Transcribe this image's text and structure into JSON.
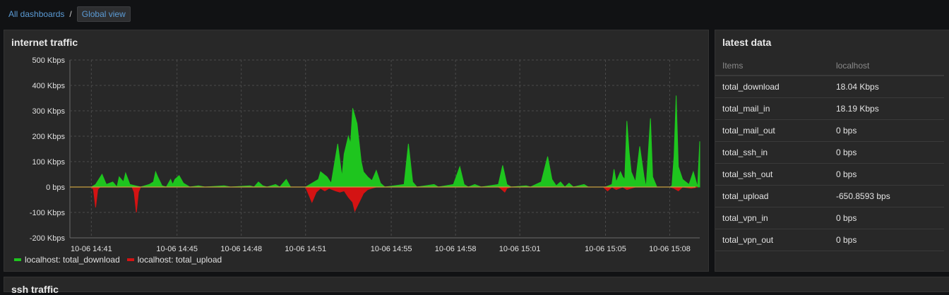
{
  "breadcrumb": {
    "all_dashboards": "All dashboards",
    "separator": "/",
    "current": "Global view"
  },
  "traffic_panel": {
    "title": "internet traffic"
  },
  "latest_panel": {
    "title": "latest data",
    "columns": [
      "Items",
      "localhost"
    ],
    "rows": [
      {
        "item": "total_download",
        "value": "18.04 Kbps"
      },
      {
        "item": "total_mail_in",
        "value": "18.19 Kbps"
      },
      {
        "item": "total_mail_out",
        "value": "0 bps"
      },
      {
        "item": "total_ssh_in",
        "value": "0 bps"
      },
      {
        "item": "total_ssh_out",
        "value": "0 bps"
      },
      {
        "item": "total_upload",
        "value": "-650.8593 bps"
      },
      {
        "item": "total_vpn_in",
        "value": "0 bps"
      },
      {
        "item": "total_vpn_out",
        "value": "0 bps"
      }
    ]
  },
  "ssh_panel": {
    "title": "ssh traffic"
  },
  "colors": {
    "download": "#1ec51e",
    "upload": "#d41313",
    "zero_line": "#c8a040"
  },
  "chart_data": {
    "type": "area",
    "title": "internet traffic",
    "y_unit": "Kbps",
    "ylim": [
      -200,
      500
    ],
    "y_ticks": [
      500,
      400,
      300,
      200,
      100,
      0,
      -100,
      -200
    ],
    "y_tick_labels": [
      "500 Kbps",
      "400 Kbps",
      "300 Kbps",
      "200 Kbps",
      "100 Kbps",
      "0 bps",
      "-100 Kbps",
      "-200 Kbps"
    ],
    "x_unit": "minutes since 14:40 (2023-10-06)",
    "xlim": [
      0,
      29.4
    ],
    "x_ticks": [
      1,
      5,
      8,
      11,
      15,
      18,
      21,
      25,
      28
    ],
    "x_tick_labels": [
      "10-06 14:41",
      "10-06 14:45",
      "10-06 14:48",
      "10-06 14:51",
      "10-06 14:55",
      "10-06 14:58",
      "10-06 15:01",
      "10-06 15:05",
      "10-06 15:08"
    ],
    "grid": true,
    "legend_position": "bottom-left",
    "series": [
      {
        "name": "localhost: total_download",
        "color": "#1ec51e",
        "points": [
          [
            1.0,
            0
          ],
          [
            1.2,
            10
          ],
          [
            1.5,
            50
          ],
          [
            1.7,
            10
          ],
          [
            2.0,
            20
          ],
          [
            2.2,
            0
          ],
          [
            2.3,
            40
          ],
          [
            2.5,
            20
          ],
          [
            2.6,
            55
          ],
          [
            2.8,
            10
          ],
          [
            3.3,
            0
          ],
          [
            3.7,
            10
          ],
          [
            3.9,
            20
          ],
          [
            4.0,
            60
          ],
          [
            4.1,
            40
          ],
          [
            4.3,
            5
          ],
          [
            4.5,
            0
          ],
          [
            4.7,
            30
          ],
          [
            4.8,
            10
          ],
          [
            4.9,
            30
          ],
          [
            5.1,
            45
          ],
          [
            5.3,
            15
          ],
          [
            5.6,
            0
          ],
          [
            6.0,
            5
          ],
          [
            6.3,
            0
          ],
          [
            7.2,
            5
          ],
          [
            7.5,
            0
          ],
          [
            8.4,
            5
          ],
          [
            8.6,
            0
          ],
          [
            8.8,
            20
          ],
          [
            9.0,
            5
          ],
          [
            9.2,
            0
          ],
          [
            9.6,
            10
          ],
          [
            9.8,
            0
          ],
          [
            10.1,
            30
          ],
          [
            10.3,
            0
          ],
          [
            11.0,
            0
          ],
          [
            11.2,
            10
          ],
          [
            11.6,
            30
          ],
          [
            11.7,
            60
          ],
          [
            12.0,
            40
          ],
          [
            12.2,
            15
          ],
          [
            12.5,
            170
          ],
          [
            12.7,
            40
          ],
          [
            12.8,
            130
          ],
          [
            13.0,
            200
          ],
          [
            13.1,
            170
          ],
          [
            13.2,
            310
          ],
          [
            13.4,
            250
          ],
          [
            13.6,
            100
          ],
          [
            13.7,
            60
          ],
          [
            13.9,
            40
          ],
          [
            14.1,
            25
          ],
          [
            14.3,
            65
          ],
          [
            14.5,
            15
          ],
          [
            14.7,
            0
          ],
          [
            15.6,
            10
          ],
          [
            15.8,
            170
          ],
          [
            16.0,
            20
          ],
          [
            16.2,
            0
          ],
          [
            17.0,
            10
          ],
          [
            17.2,
            0
          ],
          [
            17.9,
            10
          ],
          [
            18.2,
            80
          ],
          [
            18.4,
            10
          ],
          [
            18.6,
            0
          ],
          [
            18.9,
            10
          ],
          [
            19.2,
            0
          ],
          [
            20.0,
            10
          ],
          [
            20.2,
            85
          ],
          [
            20.4,
            10
          ],
          [
            20.6,
            0
          ],
          [
            21.3,
            5
          ],
          [
            21.5,
            0
          ],
          [
            22.0,
            20
          ],
          [
            22.3,
            120
          ],
          [
            22.5,
            30
          ],
          [
            22.7,
            5
          ],
          [
            22.9,
            20
          ],
          [
            23.1,
            0
          ],
          [
            23.3,
            15
          ],
          [
            23.5,
            0
          ],
          [
            24.0,
            10
          ],
          [
            24.2,
            0
          ],
          [
            25.0,
            0
          ],
          [
            25.3,
            10
          ],
          [
            25.4,
            70
          ],
          [
            25.5,
            20
          ],
          [
            25.7,
            60
          ],
          [
            25.8,
            40
          ],
          [
            25.9,
            30
          ],
          [
            26.0,
            260
          ],
          [
            26.1,
            140
          ],
          [
            26.2,
            60
          ],
          [
            26.4,
            20
          ],
          [
            26.6,
            160
          ],
          [
            26.8,
            40
          ],
          [
            26.9,
            0
          ],
          [
            27.1,
            270
          ],
          [
            27.2,
            40
          ],
          [
            27.4,
            0
          ],
          [
            28.0,
            0
          ],
          [
            28.1,
            5
          ],
          [
            28.2,
            120
          ],
          [
            28.3,
            360
          ],
          [
            28.4,
            80
          ],
          [
            28.6,
            30
          ],
          [
            28.9,
            10
          ],
          [
            29.1,
            60
          ],
          [
            29.3,
            0
          ],
          [
            29.5,
            180
          ],
          [
            29.7,
            20
          ],
          [
            29.9,
            0
          ],
          [
            30.2,
            20
          ]
        ]
      },
      {
        "name": "localhost: total_upload",
        "color": "#d41313",
        "points": [
          [
            1.0,
            0
          ],
          [
            1.1,
            -10
          ],
          [
            1.2,
            -80
          ],
          [
            1.3,
            -10
          ],
          [
            1.4,
            0
          ],
          [
            2.9,
            0
          ],
          [
            3.0,
            -20
          ],
          [
            3.1,
            -100
          ],
          [
            3.2,
            -20
          ],
          [
            3.3,
            0
          ],
          [
            11.0,
            0
          ],
          [
            11.1,
            -20
          ],
          [
            11.3,
            -60
          ],
          [
            11.5,
            -20
          ],
          [
            11.7,
            -5
          ],
          [
            11.9,
            -15
          ],
          [
            12.1,
            -5
          ],
          [
            12.4,
            -15
          ],
          [
            12.6,
            -20
          ],
          [
            12.8,
            -15
          ],
          [
            13.0,
            -40
          ],
          [
            13.2,
            -60
          ],
          [
            13.3,
            -95
          ],
          [
            13.5,
            -60
          ],
          [
            13.7,
            -25
          ],
          [
            13.9,
            -10
          ],
          [
            14.1,
            -5
          ],
          [
            14.3,
            0
          ],
          [
            20.0,
            0
          ],
          [
            20.1,
            -5
          ],
          [
            20.3,
            -20
          ],
          [
            20.4,
            -5
          ],
          [
            20.6,
            0
          ],
          [
            24.9,
            0
          ],
          [
            25.1,
            -15
          ],
          [
            25.3,
            0
          ],
          [
            25.5,
            -10
          ],
          [
            25.8,
            0
          ],
          [
            26.0,
            -10
          ],
          [
            26.2,
            -5
          ],
          [
            26.4,
            0
          ],
          [
            28.0,
            0
          ],
          [
            28.2,
            -5
          ],
          [
            28.4,
            -15
          ],
          [
            28.6,
            0
          ],
          [
            29.0,
            -5
          ],
          [
            29.3,
            0
          ]
        ]
      }
    ]
  }
}
